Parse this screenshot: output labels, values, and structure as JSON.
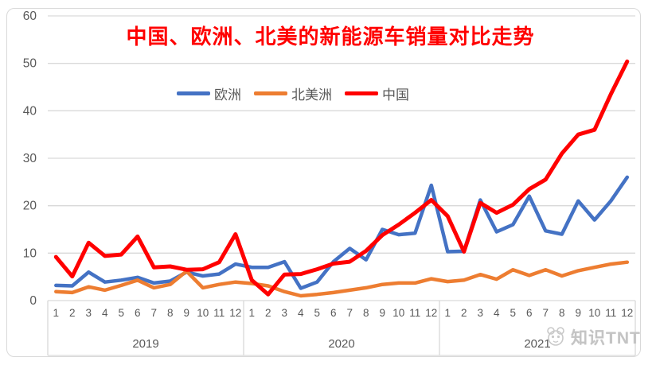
{
  "title": "中国、欧洲、北美的新能源车销量对比走势",
  "watermark": {
    "text": "知识TNT",
    "icon": "panda-logo-icon"
  },
  "legend": [
    {
      "label": "欧洲",
      "color": "#4472C4"
    },
    {
      "label": "北美洲",
      "color": "#ED7D31"
    },
    {
      "label": "中国",
      "color": "#FF0000"
    }
  ],
  "colors": {
    "europe": "#4472C4",
    "north_america": "#ED7D31",
    "china": "#FF0000",
    "gridline": "#d9d9d9",
    "axis_text": "#595959",
    "frame": "#d9d9d9"
  },
  "chart_data": {
    "type": "line",
    "title": "中国、欧洲、北美的新能源车销量对比走势",
    "xlabel": "",
    "ylabel": "",
    "ylim": [
      0,
      60
    ],
    "y_ticks": [
      0,
      10,
      20,
      30,
      40,
      50,
      60
    ],
    "grid": true,
    "legend_position": "top-center",
    "years": [
      "2019",
      "2020",
      "2021"
    ],
    "month_labels": [
      "1",
      "2",
      "3",
      "4",
      "5",
      "6",
      "7",
      "8",
      "9",
      "10",
      "11",
      "12"
    ],
    "series": [
      {
        "name": "欧洲",
        "color": "#4472C4",
        "stroke_width": 4.5,
        "values": [
          3.2,
          3.1,
          6.0,
          3.9,
          4.3,
          4.9,
          3.7,
          4.1,
          6.0,
          5.2,
          5.6,
          7.7,
          7.0,
          7.0,
          8.2,
          2.6,
          3.9,
          8.2,
          11.0,
          8.6,
          15.0,
          13.9,
          14.2,
          24.3,
          10.3,
          10.4,
          21.2,
          14.5,
          16.0,
          22.0,
          14.7,
          14.0,
          21.0,
          17.0,
          21.0,
          26.0
        ]
      },
      {
        "name": "北美洲",
        "color": "#ED7D31",
        "stroke_width": 4.5,
        "values": [
          1.9,
          1.7,
          2.9,
          2.2,
          3.2,
          4.3,
          2.7,
          3.4,
          6.2,
          2.7,
          3.4,
          3.9,
          3.6,
          3.1,
          1.9,
          1.0,
          1.3,
          1.7,
          2.2,
          2.7,
          3.4,
          3.7,
          3.7,
          4.6,
          4.0,
          4.3,
          5.5,
          4.5,
          6.5,
          5.3,
          6.5,
          5.2,
          6.3,
          7.0,
          7.7,
          8.1
        ]
      },
      {
        "name": "中国",
        "color": "#FF0000",
        "stroke_width": 5,
        "values": [
          9.2,
          5.1,
          12.2,
          9.4,
          9.7,
          13.5,
          7.0,
          7.2,
          6.5,
          6.6,
          8.1,
          14.0,
          4.3,
          1.3,
          5.5,
          5.6,
          6.6,
          7.8,
          8.2,
          10.5,
          13.8,
          16.0,
          18.5,
          21.2,
          17.8,
          10.3,
          20.6,
          18.5,
          20.2,
          23.5,
          25.5,
          31.0,
          35.0,
          36.0,
          43.5,
          50.4
        ]
      }
    ]
  }
}
